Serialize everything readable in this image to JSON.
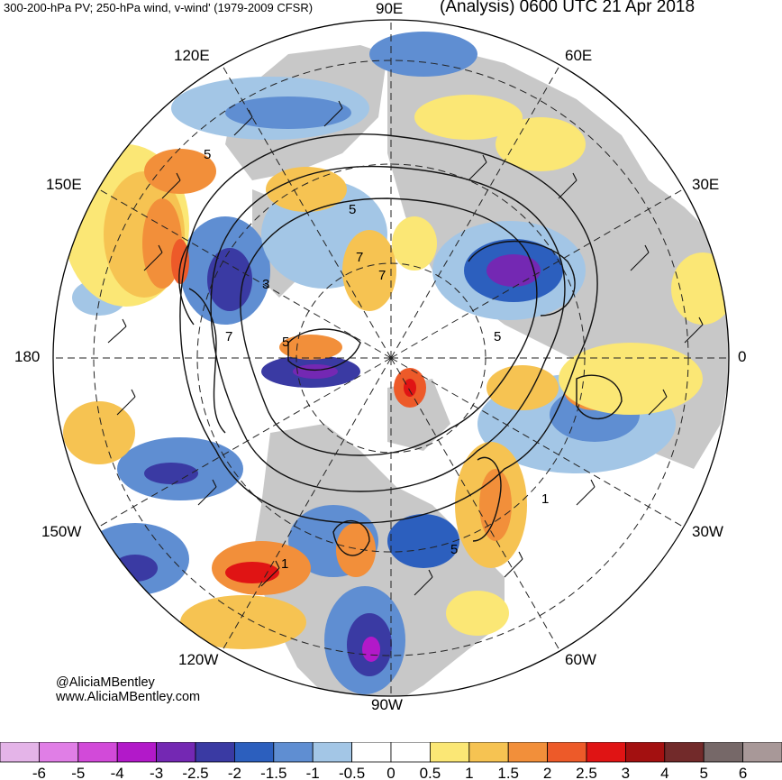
{
  "header": {
    "left_title": "300-200-hPa PV; 250-hPa wind, v-wind' (1979-2009 CFSR)",
    "right_title": "(Analysis) 0600 UTC 21 Apr 2018"
  },
  "map": {
    "projection": "north-polar-stereographic",
    "longitude_labels": [
      "90E",
      "60E",
      "30E",
      "0",
      "30W",
      "60W",
      "90W",
      "120W",
      "150W",
      "180",
      "150E",
      "120E"
    ],
    "contour_labels": [
      "5",
      "7",
      "3",
      "7",
      "5",
      "5",
      "1",
      "5",
      "1",
      "7",
      "5"
    ]
  },
  "credits": {
    "handle": "@AliciaMBentley",
    "website": "www.AliciaMBentley.com"
  },
  "colorbar": {
    "ticks": [
      "-6",
      "-5",
      "-4",
      "-3",
      "-2.5",
      "-2",
      "-1.5",
      "-1",
      "-0.5",
      "0",
      "0.5",
      "1",
      "1.5",
      "2",
      "2.5",
      "3",
      "4",
      "5",
      "6"
    ],
    "colors": [
      "#e4b4e8",
      "#e07ee6",
      "#d24ad9",
      "#b219c9",
      "#7428b3",
      "#3a3aa3",
      "#2c5fbe",
      "#5f8ed2",
      "#a3c6e6",
      "#ffffff",
      "#ffffff",
      "#fbe775",
      "#f6c352",
      "#f28f3a",
      "#ed5a29",
      "#e01414",
      "#a31010",
      "#722a2a",
      "#766868",
      "#a89898"
    ]
  }
}
